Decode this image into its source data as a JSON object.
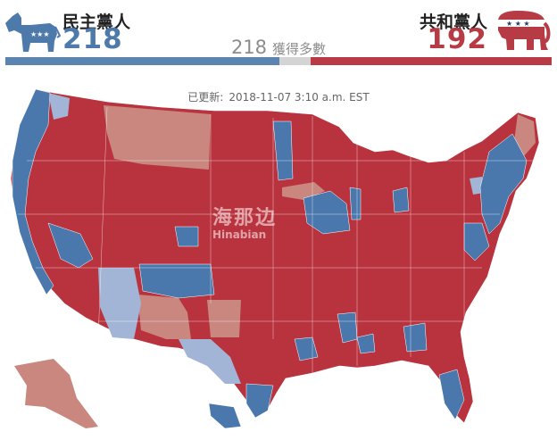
{
  "democrats": {
    "name": "民主黨人",
    "seats": "218",
    "color": "#4e7aab",
    "icon": "donkey-icon"
  },
  "republicans": {
    "name": "共和黨人",
    "seats": "192",
    "color": "#b73b45",
    "icon": "elephant-icon"
  },
  "majority": {
    "number": "218",
    "label": "獲得多數"
  },
  "seat_bar": {
    "dem_seats": 218,
    "undecided_seats": 25,
    "rep_seats": 192
  },
  "updated": {
    "label": "已更新:",
    "timestamp": "2018-11-07 3:10 a.m. EST"
  },
  "map_colors": {
    "dem": "#4a78ad",
    "dem_lean": "#a3b5d6",
    "rep": "#b9333e",
    "rep_lean": "#c9877f"
  },
  "watermark": {
    "line1": "海那边",
    "line2": "Hinabian"
  }
}
